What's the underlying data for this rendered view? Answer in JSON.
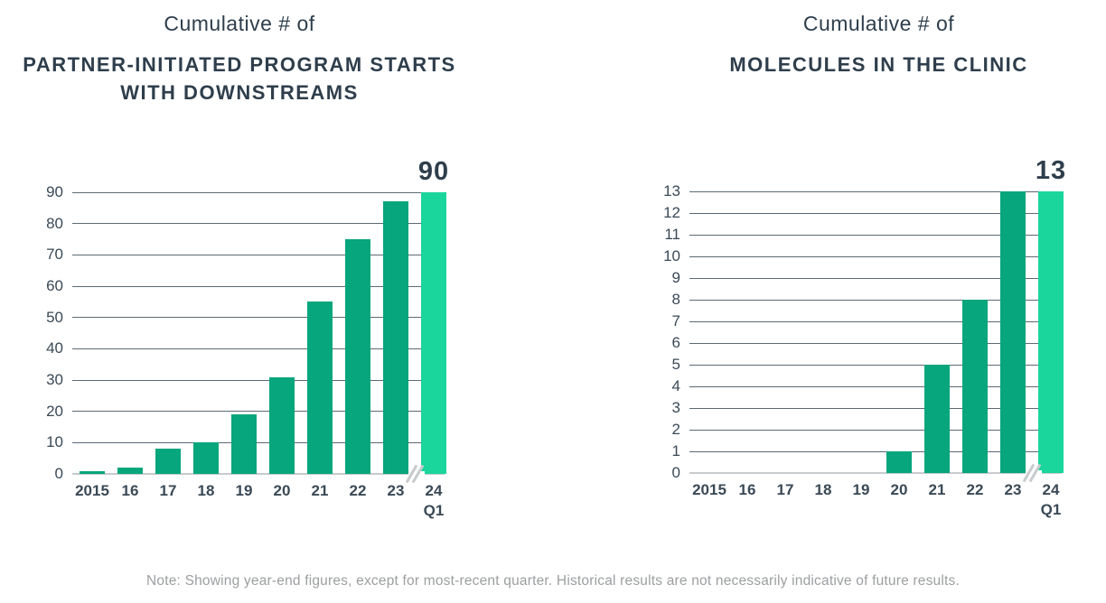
{
  "colors": {
    "bar": "#07a67c",
    "bar_highlight": "#1ad59c",
    "title_text": "#2e3e4c",
    "axis_text": "#3a4956",
    "gridline": "#5d6a74",
    "baseline": "#c8cbcd",
    "note_text": "#9c9ea0"
  },
  "chart_data": [
    {
      "type": "bar",
      "title_top": "Cumulative # of",
      "title_lines": [
        "PARTNER-INITIATED PROGRAM STARTS",
        "WITH DOWNSTREAMS"
      ],
      "categories": [
        "2015",
        "16",
        "17",
        "18",
        "19",
        "20",
        "21",
        "22",
        "23",
        "24"
      ],
      "last_category_sub": "Q1",
      "values": [
        1,
        2,
        8,
        10,
        19,
        31,
        55,
        75,
        87,
        90
      ],
      "ylim": [
        0,
        90
      ],
      "ytick_step": 10,
      "value_label": "90",
      "highlight_last": true,
      "axis_break_before_last": true,
      "grid": true,
      "legend": "none"
    },
    {
      "type": "bar",
      "title_top": "Cumulative # of",
      "title_lines": [
        "MOLECULES IN THE CLINIC"
      ],
      "categories": [
        "2015",
        "16",
        "17",
        "18",
        "19",
        "20",
        "21",
        "22",
        "23",
        "24"
      ],
      "last_category_sub": "Q1",
      "values": [
        0,
        0,
        0,
        0,
        0,
        1,
        5,
        8,
        13,
        13
      ],
      "ylim": [
        0,
        13
      ],
      "ytick_step": 1,
      "value_label": "13",
      "highlight_last": true,
      "axis_break_before_last": true,
      "grid": true,
      "legend": "none"
    }
  ],
  "footer": {
    "note": "Note: Showing year-end figures, except for most-recent quarter. Historical results are not necessarily indicative of future results."
  }
}
